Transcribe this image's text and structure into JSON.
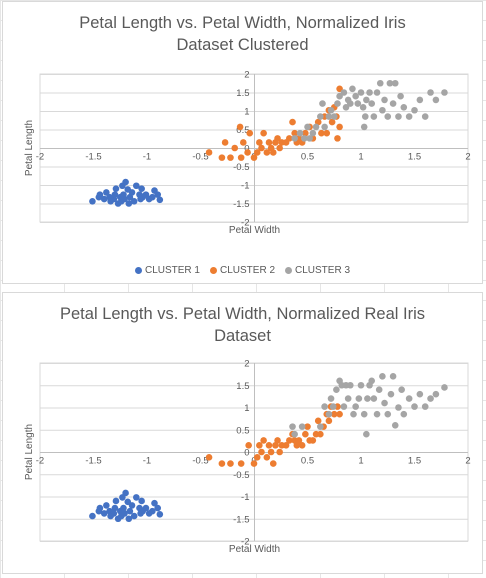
{
  "charts": [
    {
      "title": "Petal Length vs. Petal Width, Normalized Iris\nDataset Clustered",
      "xlabel": "Petal Width",
      "ylabel": "Petal Length",
      "legend": [
        {
          "label": "CLUSTER 1",
          "color": "#4472C4"
        },
        {
          "label": "CLUSTER 2",
          "color": "#ED7D31"
        },
        {
          "label": "CLUSTER 3",
          "color": "#A5A5A5"
        }
      ]
    },
    {
      "title": "Petal Length vs. Petal Width, Normalized Real Iris\nDataset",
      "xlabel": "Petal Width",
      "ylabel": "Petal Length"
    }
  ],
  "chart_data": [
    {
      "type": "scatter",
      "title": "Petal Length vs. Petal Width, Normalized Iris Dataset Clustered",
      "xlabel": "Petal Width",
      "ylabel": "Petal Length",
      "xlim": [
        -2,
        2
      ],
      "ylim": [
        -2,
        2
      ],
      "xticks": [
        "-2",
        "-1.5",
        "-1",
        "-0.5",
        "0",
        "0.5",
        "1",
        "1.5",
        "2"
      ],
      "yticks": [
        "-2",
        "-1.5",
        "-1",
        "-0.5",
        "0",
        "0.5",
        "1",
        "1.5",
        "2"
      ],
      "grid": true,
      "legend_position": "bottom",
      "series": [
        {
          "name": "CLUSTER 1",
          "color": "#4472C4",
          "points": [
            [
              -1.51,
              -1.44
            ],
            [
              -1.45,
              -1.33
            ],
            [
              -1.44,
              -1.26
            ],
            [
              -1.4,
              -1.38
            ],
            [
              -1.38,
              -1.2
            ],
            [
              -1.35,
              -1.33
            ],
            [
              -1.34,
              -1.44
            ],
            [
              -1.31,
              -1.38
            ],
            [
              -1.3,
              -1.26
            ],
            [
              -1.29,
              -1.1
            ],
            [
              -1.27,
              -1.5
            ],
            [
              -1.25,
              -1.33
            ],
            [
              -1.24,
              -1.44
            ],
            [
              -1.23,
              -1.02
            ],
            [
              -1.22,
              -1.26
            ],
            [
              -1.21,
              -1.38
            ],
            [
              -1.2,
              -0.92
            ],
            [
              -1.18,
              -1.12
            ],
            [
              -1.17,
              -1.5
            ],
            [
              -1.16,
              -1.33
            ],
            [
              -1.14,
              -1.2
            ],
            [
              -1.12,
              -1.44
            ],
            [
              -1.1,
              -1.02
            ],
            [
              -1.07,
              -1.26
            ],
            [
              -1.06,
              -1.38
            ],
            [
              -1.05,
              -1.1
            ],
            [
              -1.04,
              -1.33
            ],
            [
              -1.01,
              -1.26
            ],
            [
              -0.98,
              -1.38
            ],
            [
              -0.95,
              -1.33
            ],
            [
              -0.93,
              -1.15
            ],
            [
              -0.9,
              -1.26
            ],
            [
              -0.88,
              -1.4
            ]
          ]
        },
        {
          "name": "CLUSTER 2",
          "color": "#ED7D31",
          "points": [
            [
              -0.42,
              -0.12
            ],
            [
              -0.3,
              -0.26
            ],
            [
              -0.27,
              0.15
            ],
            [
              -0.22,
              -0.26
            ],
            [
              -0.18,
              0.0
            ],
            [
              -0.13,
              0.57
            ],
            [
              -0.12,
              -0.26
            ],
            [
              -0.1,
              0.15
            ],
            [
              -0.06,
              -0.12
            ],
            [
              -0.04,
              0.4
            ],
            [
              0.0,
              -0.26
            ],
            [
              0.03,
              -0.12
            ],
            [
              0.05,
              0.15
            ],
            [
              0.07,
              0.0
            ],
            [
              0.09,
              0.4
            ],
            [
              0.12,
              -0.12
            ],
            [
              0.14,
              0.15
            ],
            [
              0.16,
              0.0
            ],
            [
              0.18,
              -0.12
            ],
            [
              0.2,
              0.15
            ],
            [
              0.22,
              0.26
            ],
            [
              0.24,
              0.0
            ],
            [
              0.26,
              0.15
            ],
            [
              0.3,
              0.15
            ],
            [
              0.33,
              0.26
            ],
            [
              0.36,
              0.7
            ],
            [
              0.38,
              0.4
            ],
            [
              0.4,
              0.15
            ],
            [
              0.42,
              0.26
            ],
            [
              0.45,
              0.15
            ],
            [
              0.48,
              0.4
            ],
            [
              0.52,
              0.57
            ],
            [
              0.55,
              0.26
            ],
            [
              0.6,
              0.7
            ],
            [
              0.63,
              0.4
            ],
            [
              0.66,
              0.85
            ],
            [
              0.68,
              0.4
            ],
            [
              0.7,
              1.02
            ],
            [
              0.73,
              0.7
            ],
            [
              0.75,
              1.1
            ],
            [
              0.77,
              0.85
            ],
            [
              0.78,
              0.26
            ],
            [
              0.8,
              1.6
            ],
            [
              0.8,
              0.57
            ]
          ]
        },
        {
          "name": "CLUSTER 3",
          "color": "#A5A5A5",
          "points": [
            [
              0.38,
              0.26
            ],
            [
              0.43,
              0.4
            ],
            [
              0.47,
              0.26
            ],
            [
              0.5,
              0.57
            ],
            [
              0.52,
              0.26
            ],
            [
              0.55,
              0.4
            ],
            [
              0.58,
              0.57
            ],
            [
              0.62,
              0.85
            ],
            [
              0.64,
              1.2
            ],
            [
              0.66,
              0.57
            ],
            [
              0.7,
              0.85
            ],
            [
              0.72,
              1.02
            ],
            [
              0.75,
              0.85
            ],
            [
              0.78,
              1.2
            ],
            [
              0.8,
              1.4
            ],
            [
              0.84,
              1.5
            ],
            [
              0.86,
              1.1
            ],
            [
              0.88,
              1.3
            ],
            [
              0.9,
              1.2
            ],
            [
              0.92,
              1.6
            ],
            [
              0.95,
              1.4
            ],
            [
              0.97,
              1.2
            ],
            [
              1.0,
              1.5
            ],
            [
              1.02,
              1.1
            ],
            [
              1.03,
              0.57
            ],
            [
              1.04,
              0.85
            ],
            [
              1.05,
              1.3
            ],
            [
              1.08,
              1.5
            ],
            [
              1.1,
              1.2
            ],
            [
              1.12,
              0.85
            ],
            [
              1.15,
              1.5
            ],
            [
              1.18,
              1.75
            ],
            [
              1.2,
              1.02
            ],
            [
              1.22,
              1.3
            ],
            [
              1.25,
              0.85
            ],
            [
              1.27,
              1.75
            ],
            [
              1.3,
              1.2
            ],
            [
              1.32,
              1.75
            ],
            [
              1.35,
              0.85
            ],
            [
              1.37,
              1.4
            ],
            [
              1.4,
              1.1
            ],
            [
              1.45,
              0.85
            ],
            [
              1.5,
              1.02
            ],
            [
              1.55,
              1.3
            ],
            [
              1.6,
              0.85
            ],
            [
              1.65,
              1.5
            ],
            [
              1.7,
              1.3
            ],
            [
              1.78,
              1.5
            ]
          ]
        }
      ]
    },
    {
      "type": "scatter",
      "title": "Petal Length vs. Petal Width, Normalized Real Iris Dataset",
      "xlabel": "Petal Width",
      "ylabel": "Petal Length",
      "xlim": [
        -2,
        2
      ],
      "ylim": [
        -2,
        2
      ],
      "xticks": [
        "-2",
        "-1.5",
        "-1",
        "-0.5",
        "0",
        "0.5",
        "1",
        "1.5",
        "2"
      ],
      "yticks": [
        "-2",
        "-1.5",
        "-1",
        "-0.5",
        "0",
        "0.5",
        "1",
        "1.5",
        "2"
      ],
      "grid": true,
      "series": [
        {
          "color": "#4472C4",
          "points": [
            [
              -1.51,
              -1.44
            ],
            [
              -1.45,
              -1.33
            ],
            [
              -1.44,
              -1.26
            ],
            [
              -1.4,
              -1.38
            ],
            [
              -1.38,
              -1.2
            ],
            [
              -1.35,
              -1.33
            ],
            [
              -1.34,
              -1.44
            ],
            [
              -1.31,
              -1.38
            ],
            [
              -1.3,
              -1.26
            ],
            [
              -1.29,
              -1.1
            ],
            [
              -1.27,
              -1.5
            ],
            [
              -1.25,
              -1.33
            ],
            [
              -1.24,
              -1.44
            ],
            [
              -1.23,
              -1.02
            ],
            [
              -1.22,
              -1.26
            ],
            [
              -1.21,
              -1.38
            ],
            [
              -1.2,
              -0.92
            ],
            [
              -1.18,
              -1.12
            ],
            [
              -1.17,
              -1.5
            ],
            [
              -1.16,
              -1.33
            ],
            [
              -1.14,
              -1.2
            ],
            [
              -1.12,
              -1.44
            ],
            [
              -1.1,
              -1.02
            ],
            [
              -1.07,
              -1.26
            ],
            [
              -1.06,
              -1.38
            ],
            [
              -1.05,
              -1.1
            ],
            [
              -1.04,
              -1.33
            ],
            [
              -1.01,
              -1.26
            ],
            [
              -0.98,
              -1.38
            ],
            [
              -0.95,
              -1.33
            ],
            [
              -0.93,
              -1.15
            ],
            [
              -0.9,
              -1.26
            ],
            [
              -0.88,
              -1.4
            ]
          ]
        },
        {
          "color": "#ED7D31",
          "points": [
            [
              -0.42,
              -0.12
            ],
            [
              -0.3,
              -0.26
            ],
            [
              -0.22,
              -0.26
            ],
            [
              -0.12,
              -0.26
            ],
            [
              -0.05,
              0.15
            ],
            [
              0.0,
              -0.26
            ],
            [
              0.03,
              -0.12
            ],
            [
              0.05,
              0.15
            ],
            [
              0.07,
              0.0
            ],
            [
              0.09,
              0.26
            ],
            [
              0.12,
              -0.12
            ],
            [
              0.14,
              0.15
            ],
            [
              0.16,
              0.0
            ],
            [
              0.18,
              -0.26
            ],
            [
              0.2,
              0.15
            ],
            [
              0.22,
              0.26
            ],
            [
              0.24,
              0.0
            ],
            [
              0.26,
              0.15
            ],
            [
              0.3,
              0.15
            ],
            [
              0.33,
              0.26
            ],
            [
              0.36,
              0.4
            ],
            [
              0.38,
              0.26
            ],
            [
              0.4,
              0.15
            ],
            [
              0.42,
              0.26
            ],
            [
              0.45,
              0.15
            ],
            [
              0.48,
              0.4
            ],
            [
              0.5,
              0.57
            ],
            [
              0.52,
              0.26
            ],
            [
              0.55,
              0.26
            ],
            [
              0.58,
              0.4
            ],
            [
              0.6,
              0.7
            ],
            [
              0.62,
              0.4
            ],
            [
              0.65,
              0.57
            ],
            [
              0.68,
              0.85
            ],
            [
              0.7,
              0.7
            ],
            [
              0.72,
              1.02
            ],
            [
              0.75,
              0.85
            ],
            [
              0.78,
              1.02
            ],
            [
              0.8,
              0.85
            ]
          ]
        },
        {
          "color": "#A5A5A5",
          "points": [
            [
              0.36,
              0.57
            ],
            [
              0.38,
              0.4
            ],
            [
              0.45,
              0.57
            ],
            [
              0.62,
              0.57
            ],
            [
              0.66,
              1.02
            ],
            [
              0.7,
              0.85
            ],
            [
              0.72,
              1.2
            ],
            [
              0.74,
              1.02
            ],
            [
              0.77,
              1.4
            ],
            [
              0.8,
              1.6
            ],
            [
              0.82,
              1.5
            ],
            [
              0.84,
              1.02
            ],
            [
              0.86,
              1.5
            ],
            [
              0.88,
              1.2
            ],
            [
              0.9,
              1.5
            ],
            [
              0.93,
              0.85
            ],
            [
              0.95,
              1.02
            ],
            [
              0.98,
              1.2
            ],
            [
              1.0,
              1.5
            ],
            [
              1.03,
              0.85
            ],
            [
              1.05,
              0.4
            ],
            [
              1.06,
              1.2
            ],
            [
              1.08,
              1.5
            ],
            [
              1.1,
              1.6
            ],
            [
              1.12,
              1.2
            ],
            [
              1.15,
              0.85
            ],
            [
              1.17,
              1.4
            ],
            [
              1.2,
              1.7
            ],
            [
              1.22,
              1.1
            ],
            [
              1.25,
              0.85
            ],
            [
              1.28,
              1.3
            ],
            [
              1.3,
              1.7
            ],
            [
              1.32,
              0.6
            ],
            [
              1.35,
              1.0
            ],
            [
              1.38,
              1.4
            ],
            [
              1.4,
              0.85
            ],
            [
              1.45,
              1.2
            ],
            [
              1.5,
              1.02
            ],
            [
              1.55,
              1.3
            ],
            [
              1.6,
              1.02
            ],
            [
              1.65,
              1.2
            ],
            [
              1.7,
              1.3
            ],
            [
              1.78,
              1.45
            ]
          ]
        }
      ]
    }
  ]
}
